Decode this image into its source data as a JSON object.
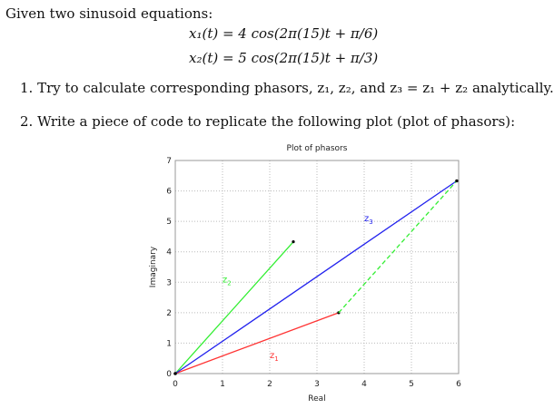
{
  "text": {
    "intro": "Given two sinusoid equations:",
    "eq1": "x₁(t) = 4 cos(2π(15)t + π/6)",
    "eq2": "x₂(t) = 5 cos(2π(15)t + π/3)",
    "item1": "1.  Try to calculate corresponding phasors, z₁, z₂, and z₃ = z₁ + z₂ analytically.",
    "item2": "2.  Write a piece of code to replicate the following plot (plot of phasors):"
  },
  "chart_data": {
    "type": "line",
    "title": "Plot of phasors",
    "xlabel": "Real",
    "ylabel": "Imaginary",
    "xlim": [
      0,
      6
    ],
    "ylim": [
      0,
      7
    ],
    "xticks": [
      "0",
      "1",
      "2",
      "3",
      "4",
      "5",
      "6"
    ],
    "yticks": [
      "0",
      "1",
      "2",
      "3",
      "4",
      "5",
      "6",
      "7"
    ],
    "grid": true,
    "series": [
      {
        "name": "z1",
        "color": "#ff3333",
        "style": "solid",
        "x": [
          0,
          3.46
        ],
        "y": [
          0,
          2.0
        ]
      },
      {
        "name": "z2",
        "color": "#33ee33",
        "style": "solid",
        "x": [
          0,
          2.5
        ],
        "y": [
          0,
          4.33
        ]
      },
      {
        "name": "z3",
        "color": "#2222ee",
        "style": "solid",
        "x": [
          0,
          5.96
        ],
        "y": [
          0,
          6.33
        ]
      },
      {
        "name": "z2 shifted",
        "color": "#33ee33",
        "style": "dashed",
        "x": [
          3.46,
          5.96
        ],
        "y": [
          2.0,
          6.33
        ]
      }
    ],
    "annotations": [
      {
        "text": "z1",
        "x": 2.0,
        "y": 0.5,
        "color": "#ff3333"
      },
      {
        "text": "z2",
        "x": 1.0,
        "y": 3.0,
        "color": "#33ee33"
      },
      {
        "text": "z3",
        "x": 4.0,
        "y": 5.0,
        "color": "#2222ee"
      }
    ]
  }
}
